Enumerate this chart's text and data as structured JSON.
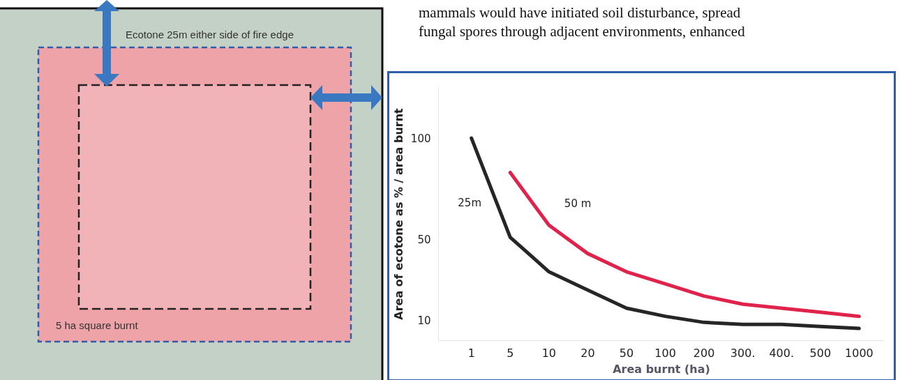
{
  "chart_data": [
    {
      "type": "other",
      "annotations": [
        "Ecotone 25m either side of fire edge",
        "5 ha square burnt"
      ]
    },
    {
      "type": "line",
      "xlabel": "Area burnt (ha)",
      "ylabel": "Area of ecotone as % / area burnt",
      "annotations": [
        "mammals would have initiated soil disturbance, spread",
        "fungal spores through adjacent environments, enhanced"
      ],
      "categories": [
        "1",
        "5",
        "10",
        "20",
        "50",
        "100",
        "200",
        "300.",
        "400.",
        "500",
        "1000"
      ],
      "ylim": [
        0,
        125
      ],
      "yticks": [
        10,
        50,
        100
      ],
      "grid": false,
      "series": [
        {
          "name": "25m",
          "color": "#262626",
          "values": [
            100,
            51,
            34,
            25,
            16,
            12,
            9,
            8,
            8,
            7,
            6
          ]
        },
        {
          "name": "50 m",
          "color": "#e0234b",
          "values": [
            null,
            83,
            57,
            43,
            34,
            28,
            22,
            18,
            16,
            14,
            12
          ]
        }
      ]
    }
  ]
}
